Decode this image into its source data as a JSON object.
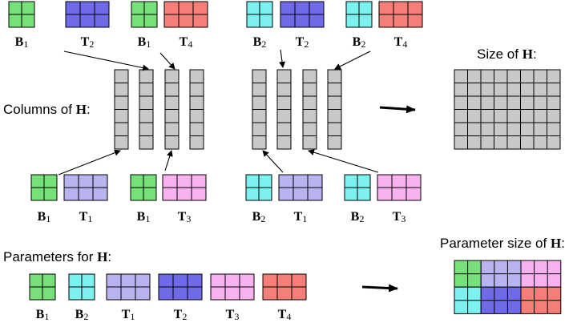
{
  "labels": {
    "columns_of_h": "Columns of",
    "size_of_h": "Size of",
    "parameters_for_h": "Parameters for",
    "parameter_size_of_h": "Parameter size of",
    "h_symbol": "H"
  },
  "colors": {
    "B1": "#77e07a",
    "B2": "#7df0f0",
    "T1": "#b7b4f0",
    "T2": "#6f6ae8",
    "T3": "#f7b2ef",
    "T4": "#f57f78",
    "gray": "#c8c8c8"
  },
  "matrix_labels": {
    "B1": {
      "letter": "B",
      "sub": "1"
    },
    "B2": {
      "letter": "B",
      "sub": "2"
    },
    "T1": {
      "letter": "T",
      "sub": "1"
    },
    "T2": {
      "letter": "T",
      "sub": "2"
    },
    "T3": {
      "letter": "T",
      "sub": "3"
    },
    "T4": {
      "letter": "T",
      "sub": "4"
    }
  },
  "top_pairs": [
    [
      "B1",
      "T2"
    ],
    [
      "B1",
      "T4"
    ],
    [
      "B2",
      "T2"
    ],
    [
      "B2",
      "T4"
    ]
  ],
  "bottom_pairs": [
    [
      "B1",
      "T1"
    ],
    [
      "B1",
      "T3"
    ],
    [
      "B2",
      "T1"
    ],
    [
      "B2",
      "T3"
    ]
  ],
  "parameter_list": [
    "B1",
    "B2",
    "T1",
    "T2",
    "T3",
    "T4"
  ]
}
